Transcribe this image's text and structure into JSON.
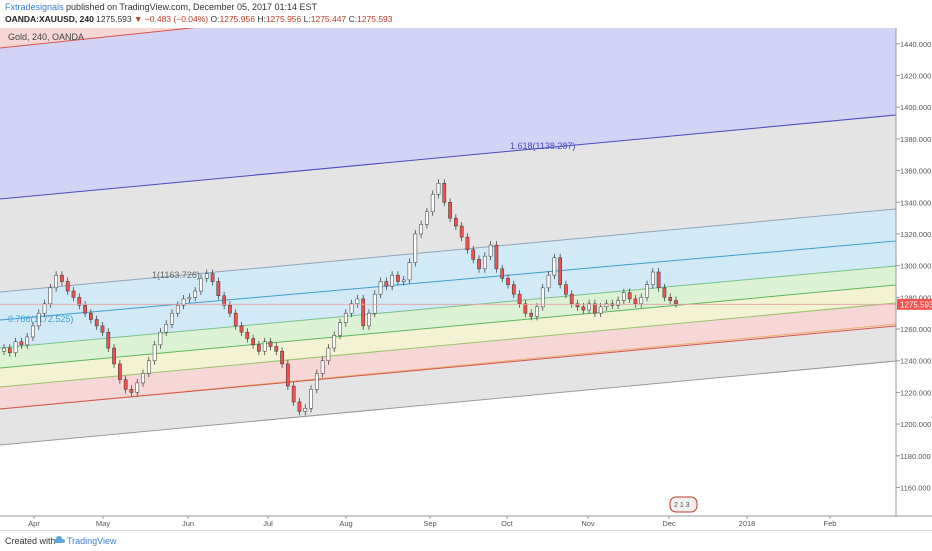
{
  "header": {
    "author": "Fxtradesignals",
    "published_text": "published on TradingView.com, December 05, 2017 01:14 EST",
    "symbol": "OANDA:XAUUSD, 240",
    "last": "1275.593",
    "change": "−0.483 (−0.04%)",
    "open_label": "O:",
    "open": "1275.956",
    "high_label": "H:",
    "high": "1275.956",
    "low_label": "L:",
    "low": "1275.447",
    "close_label": "C:",
    "close": "1275.593"
  },
  "chart_data": {
    "type": "line",
    "title": "Gold, 240, OANDA",
    "price_axis": {
      "range": [
        1142,
        1450
      ],
      "ticks": [
        "1440.000",
        "1420.000",
        "1400.000",
        "1380.000",
        "1360.000",
        "1340.000",
        "1320.000",
        "1300.000",
        "1280.000",
        "1260.000",
        "1240.000",
        "1220.000",
        "1200.000",
        "1180.000",
        "1160.000"
      ],
      "current_price_label": "1275.593"
    },
    "time_axis": {
      "labels": [
        "Apr",
        "May",
        "Jun",
        "Jul",
        "Aug",
        "Sep",
        "Oct",
        "Nov",
        "Dec",
        "2018",
        "Feb"
      ]
    },
    "fib_labels": [
      "1.618(1138.287)",
      "1(1163.726)",
      "0.786(1172.525)"
    ],
    "event_badge": "2 1 3",
    "colors": {
      "purple_zone": "#d3d3f5",
      "gray_zone": "#e4e4e4",
      "blue_zone": "#d2e9f7",
      "green_zone": "#dcf3d3",
      "yellow_zone": "#f3f3d3",
      "red_zone": "#f7d6d6",
      "candle_up": "#ffffff",
      "candle_down": "#ef5350",
      "price_line": "#e8a0a0"
    },
    "series": [
      {
        "values": [
          1248,
          1245,
          1252,
          1250,
          1255,
          1262,
          1270,
          1276,
          1286,
          1294,
          1290,
          1284,
          1280,
          1275,
          1270,
          1266,
          1262,
          1258,
          1248,
          1238,
          1228,
          1222,
          1220,
          1226,
          1232,
          1240,
          1250,
          1258,
          1263,
          1270,
          1275,
          1279,
          1280,
          1284,
          1292,
          1295,
          1290,
          1281,
          1275,
          1270,
          1262,
          1258,
          1254,
          1250,
          1246,
          1252,
          1249,
          1246,
          1238,
          1224,
          1214,
          1208,
          1210,
          1222,
          1232,
          1240,
          1248,
          1256,
          1264,
          1270,
          1276,
          1279,
          1262,
          1270,
          1282,
          1290,
          1287,
          1294,
          1290,
          1291,
          1302,
          1320,
          1326,
          1334,
          1345,
          1352,
          1340,
          1330,
          1325,
          1318,
          1310,
          1304,
          1298,
          1306,
          1313,
          1298,
          1292,
          1288,
          1282,
          1276,
          1270,
          1268,
          1274,
          1286,
          1294,
          1305,
          1288,
          1282,
          1276,
          1274,
          1272,
          1276,
          1270,
          1274,
          1276,
          1275,
          1278,
          1283,
          1279,
          1276,
          1280,
          1288,
          1296,
          1286,
          1280,
          1278,
          1276
        ]
      }
    ]
  },
  "footer": {
    "created_with": "Created with",
    "brand": "TradingView"
  }
}
